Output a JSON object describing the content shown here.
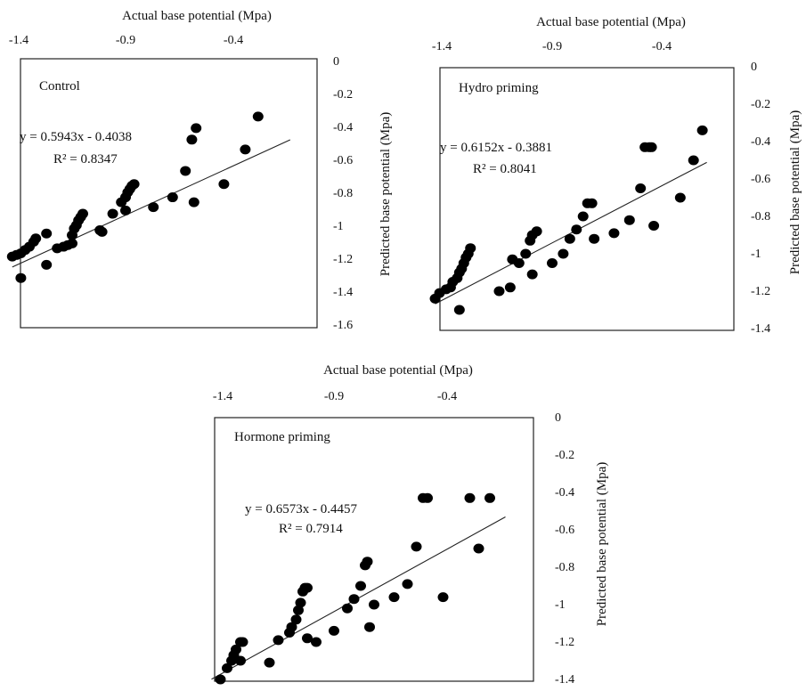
{
  "chart_data": [
    {
      "type": "scatter",
      "title": "Control",
      "xlabel": "Actual base potential (Mpa)",
      "ylabel": "Predicted base potential (Mpa)",
      "x_ticks": [
        "-1.4",
        "-0.9",
        "-0.4"
      ],
      "y_ticks": [
        "0",
        "-0.2",
        "-0.4",
        "-0.6",
        "-0.8",
        "-1",
        "-1.2",
        "-1.4",
        "-1.6"
      ],
      "xlim": [
        -1.43,
        -0.13
      ],
      "ylim": [
        -1.6,
        0
      ],
      "equation": "y = 0.5943x - 0.4038",
      "r2": "R² = 0.8347",
      "trendline": {
        "slope": 0.5943,
        "intercept": -0.4038
      },
      "points": [
        [
          -1.43,
          -1.19
        ],
        [
          -1.41,
          -1.18
        ],
        [
          -1.39,
          -1.17
        ],
        [
          -1.37,
          -1.15
        ],
        [
          -1.35,
          -1.13
        ],
        [
          -1.33,
          -1.1
        ],
        [
          -1.32,
          -1.08
        ],
        [
          -1.39,
          -1.32
        ],
        [
          -1.27,
          -1.05
        ],
        [
          -1.27,
          -1.24
        ],
        [
          -1.22,
          -1.14
        ],
        [
          -1.19,
          -1.13
        ],
        [
          -1.17,
          -1.12
        ],
        [
          -1.15,
          -1.11
        ],
        [
          -1.15,
          -1.06
        ],
        [
          -1.14,
          -1.02
        ],
        [
          -1.13,
          -1.0
        ],
        [
          -1.12,
          -0.97
        ],
        [
          -1.11,
          -0.95
        ],
        [
          -1.1,
          -0.93
        ],
        [
          -1.02,
          -1.03
        ],
        [
          -1.01,
          -1.04
        ],
        [
          -0.96,
          -0.93
        ],
        [
          -0.92,
          -0.86
        ],
        [
          -0.9,
          -0.91
        ],
        [
          -0.9,
          -0.83
        ],
        [
          -0.89,
          -0.8
        ],
        [
          -0.88,
          -0.78
        ],
        [
          -0.87,
          -0.76
        ],
        [
          -0.86,
          -0.75
        ],
        [
          -0.77,
          -0.89
        ],
        [
          -0.68,
          -0.83
        ],
        [
          -0.62,
          -0.67
        ],
        [
          -0.59,
          -0.48
        ],
        [
          -0.58,
          -0.86
        ],
        [
          -0.57,
          -0.41
        ],
        [
          -0.44,
          -0.75
        ],
        [
          -0.34,
          -0.54
        ],
        [
          -0.28,
          -0.34
        ]
      ]
    },
    {
      "type": "scatter",
      "title": "Hydro priming",
      "xlabel": "Actual base potential (Mpa)",
      "ylabel": "Predicted base potential (Mpa)",
      "x_ticks": [
        "-1.4",
        "-0.9",
        "-0.4"
      ],
      "y_ticks": [
        "0",
        "-0.2",
        "-0.4",
        "-0.6",
        "-0.8",
        "-1",
        "-1.2",
        "-1.4"
      ],
      "xlim": [
        -1.43,
        -0.2
      ],
      "ylim": [
        -1.4,
        0
      ],
      "equation": "y = 0.6152x - 0.3881",
      "r2": "R² = 0.8041",
      "trendline": {
        "slope": 0.6152,
        "intercept": -0.3881
      },
      "points": [
        [
          -1.43,
          -1.24
        ],
        [
          -1.41,
          -1.21
        ],
        [
          -1.38,
          -1.19
        ],
        [
          -1.36,
          -1.18
        ],
        [
          -1.35,
          -1.15
        ],
        [
          -1.33,
          -1.13
        ],
        [
          -1.32,
          -1.1
        ],
        [
          -1.31,
          -1.08
        ],
        [
          -1.3,
          -1.05
        ],
        [
          -1.29,
          -1.02
        ],
        [
          -1.28,
          -1.0
        ],
        [
          -1.27,
          -0.97
        ],
        [
          -1.32,
          -1.3
        ],
        [
          -1.14,
          -1.2
        ],
        [
          -1.09,
          -1.18
        ],
        [
          -1.08,
          -1.03
        ],
        [
          -1.05,
          -1.05
        ],
        [
          -1.02,
          -1.0
        ],
        [
          -1.0,
          -0.93
        ],
        [
          -0.99,
          -1.11
        ],
        [
          -0.99,
          -0.9
        ],
        [
          -0.97,
          -0.88
        ],
        [
          -0.9,
          -1.05
        ],
        [
          -0.85,
          -1.0
        ],
        [
          -0.82,
          -0.92
        ],
        [
          -0.79,
          -0.87
        ],
        [
          -0.76,
          -0.8
        ],
        [
          -0.74,
          -0.73
        ],
        [
          -0.72,
          -0.73
        ],
        [
          -0.71,
          -0.92
        ],
        [
          -0.62,
          -0.89
        ],
        [
          -0.55,
          -0.82
        ],
        [
          -0.5,
          -0.65
        ],
        [
          -0.48,
          -0.43
        ],
        [
          -0.46,
          -0.43
        ],
        [
          -0.45,
          -0.43
        ],
        [
          -0.44,
          -0.85
        ],
        [
          -0.32,
          -0.7
        ],
        [
          -0.26,
          -0.5
        ],
        [
          -0.22,
          -0.34
        ]
      ]
    },
    {
      "type": "scatter",
      "title": "Hormone priming",
      "xlabel": "Actual base potential (Mpa)",
      "ylabel": "Predicted base potential (Mpa)",
      "x_ticks": [
        "-1.4",
        "-0.9",
        "-0.4"
      ],
      "y_ticks": [
        "0",
        "-0.2",
        "-0.4",
        "-0.6",
        "-0.8",
        "-1",
        "-1.2",
        "-1.4"
      ],
      "xlim": [
        -1.45,
        -0.13
      ],
      "ylim": [
        -1.4,
        0
      ],
      "equation": "y = 0.6573x - 0.4457",
      "r2": "R² = 0.7914",
      "trendline": {
        "slope": 0.6573,
        "intercept": -0.4457
      },
      "points": [
        [
          -1.41,
          -1.4
        ],
        [
          -1.38,
          -1.34
        ],
        [
          -1.36,
          -1.3
        ],
        [
          -1.35,
          -1.27
        ],
        [
          -1.34,
          -1.24
        ],
        [
          -1.32,
          -1.2
        ],
        [
          -1.31,
          -1.2
        ],
        [
          -1.32,
          -1.3
        ],
        [
          -1.19,
          -1.31
        ],
        [
          -1.15,
          -1.19
        ],
        [
          -1.1,
          -1.15
        ],
        [
          -1.09,
          -1.12
        ],
        [
          -1.07,
          -1.08
        ],
        [
          -1.06,
          -1.03
        ],
        [
          -1.05,
          -0.99
        ],
        [
          -1.04,
          -0.93
        ],
        [
          -1.03,
          -0.91
        ],
        [
          -1.02,
          -0.91
        ],
        [
          -1.02,
          -1.18
        ],
        [
          -0.98,
          -1.2
        ],
        [
          -0.9,
          -1.14
        ],
        [
          -0.84,
          -1.02
        ],
        [
          -0.81,
          -0.97
        ],
        [
          -0.78,
          -0.9
        ],
        [
          -0.76,
          -0.79
        ],
        [
          -0.75,
          -0.77
        ],
        [
          -0.74,
          -1.12
        ],
        [
          -0.72,
          -1.0
        ],
        [
          -0.63,
          -0.96
        ],
        [
          -0.57,
          -0.89
        ],
        [
          -0.53,
          -0.69
        ],
        [
          -0.5,
          -0.43
        ],
        [
          -0.48,
          -0.43
        ],
        [
          -0.41,
          -0.96
        ],
        [
          -0.29,
          -0.43
        ],
        [
          -0.25,
          -0.7
        ],
        [
          -0.2,
          -0.43
        ]
      ]
    }
  ]
}
